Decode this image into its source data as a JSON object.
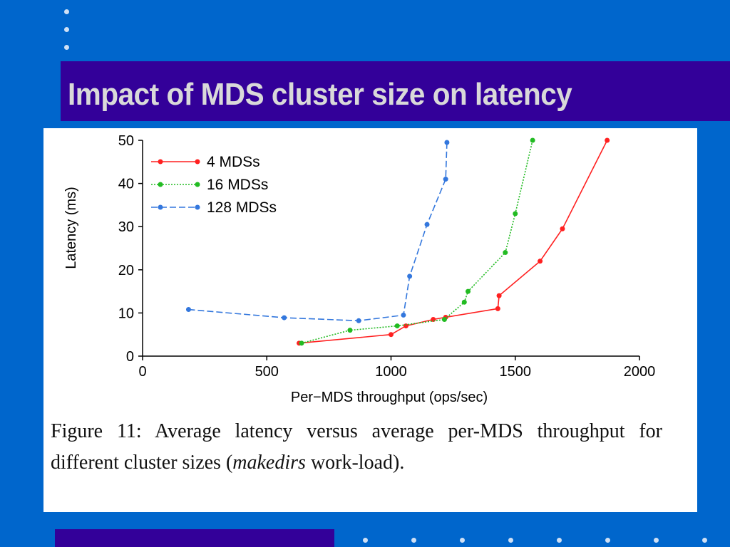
{
  "slide": {
    "title": "Impact of MDS cluster size on latency",
    "background_color": "#0066cc",
    "title_bar_color": "#330099"
  },
  "figure": {
    "caption_prefix": "Figure 11:  Average latency versus average per-MDS throughput for different cluster sizes (",
    "caption_italic": "makedirs",
    "caption_suffix": " work-load)."
  },
  "chart_data": {
    "type": "line",
    "title": "",
    "xlabel": "Per−MDS throughput (ops/sec)",
    "ylabel": "Latency (ms)",
    "xlim": [
      0,
      2000
    ],
    "ylim": [
      0,
      50
    ],
    "xticks": [
      "0",
      "500",
      "1000",
      "1500",
      "2000"
    ],
    "yticks": [
      "0",
      "10",
      "20",
      "30",
      "40",
      "50"
    ],
    "grid": false,
    "legend_position": "top-left",
    "series": [
      {
        "name": "4 MDSs",
        "color": "#ff2020",
        "style": "solid",
        "x": [
          630,
          1000,
          1060,
          1170,
          1220,
          1430,
          1435,
          1600,
          1690,
          1870
        ],
        "y": [
          3,
          5,
          7,
          8.5,
          9,
          11,
          14,
          22,
          29.5,
          50
        ]
      },
      {
        "name": "16 MDSs",
        "color": "#22bb22",
        "style": "dotted",
        "x": [
          640,
          835,
          1025,
          1215,
          1295,
          1310,
          1460,
          1500,
          1570
        ],
        "y": [
          3,
          6,
          7,
          8.5,
          12.5,
          15,
          24,
          33,
          50
        ]
      },
      {
        "name": "128 MDSs",
        "color": "#3377dd",
        "style": "dashed",
        "x": [
          185,
          570,
          870,
          1050,
          1075,
          1145,
          1220,
          1225
        ],
        "y": [
          10.8,
          8.9,
          8.2,
          9.5,
          18.5,
          30.5,
          41,
          49.5
        ]
      }
    ]
  }
}
